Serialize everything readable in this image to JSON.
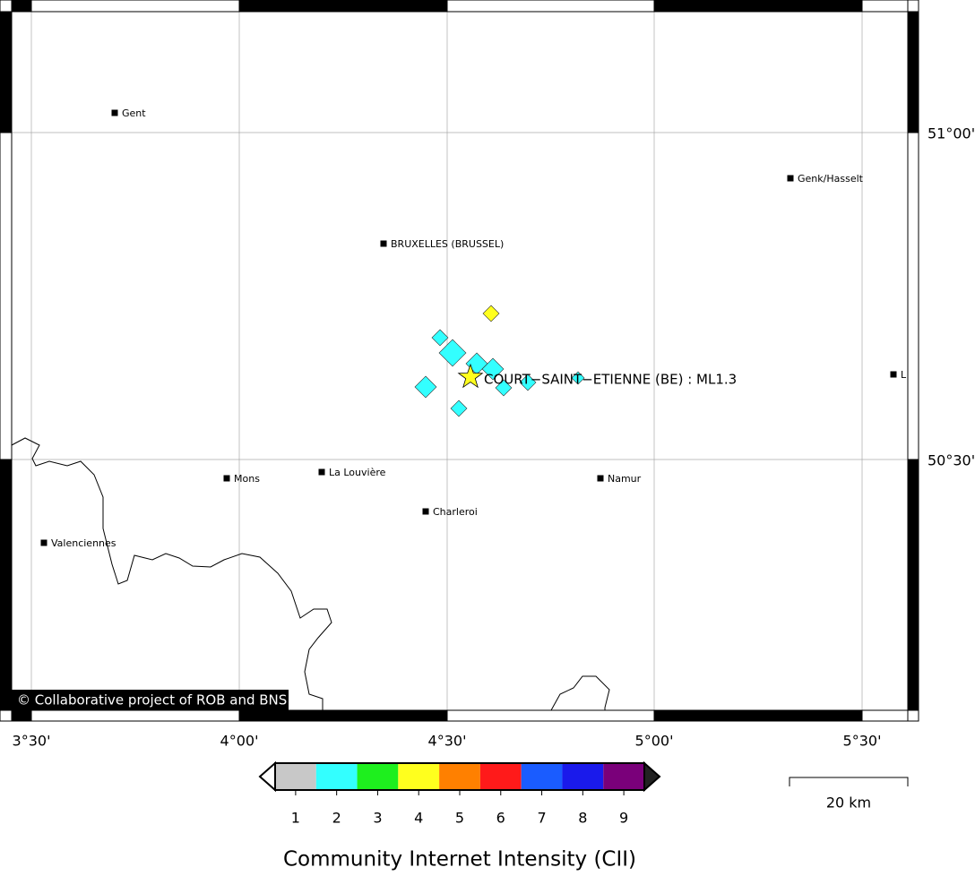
{
  "map": {
    "lon_ticks": [
      "3°30'",
      "4°00'",
      "4°30'",
      "5°00'",
      "5°30'"
    ],
    "lat_ticks": [
      "51°00'",
      "50°30'"
    ],
    "cities": [
      "Gent",
      "Genk/Hasselt",
      "BRUXELLES (BRUSSEL)",
      "L",
      "Mons",
      "La Louvière",
      "Namur",
      "Charleroi",
      "Valenciennes"
    ],
    "event": {
      "label": "COURT−SAINT−ETIENNE (BE) : ML1.3"
    },
    "observations": [
      4,
      2,
      2,
      2,
      2,
      2,
      2,
      2,
      2,
      2
    ],
    "colorbar": {
      "title": "Community Internet Intensity (CII)",
      "ticks": [
        1,
        2,
        3,
        4,
        5,
        6,
        7,
        8,
        9
      ],
      "colors": [
        "#c8c8c8",
        "#33ffff",
        "#1eef1e",
        "#ffff1e",
        "#ff8000",
        "#ff1a1a",
        "#1a5cff",
        "#1a1aeb",
        "#7a007a"
      ]
    },
    "scale_bar": {
      "label": "20 km"
    },
    "copyright": "© Collaborative project of ROB and BNS"
  }
}
